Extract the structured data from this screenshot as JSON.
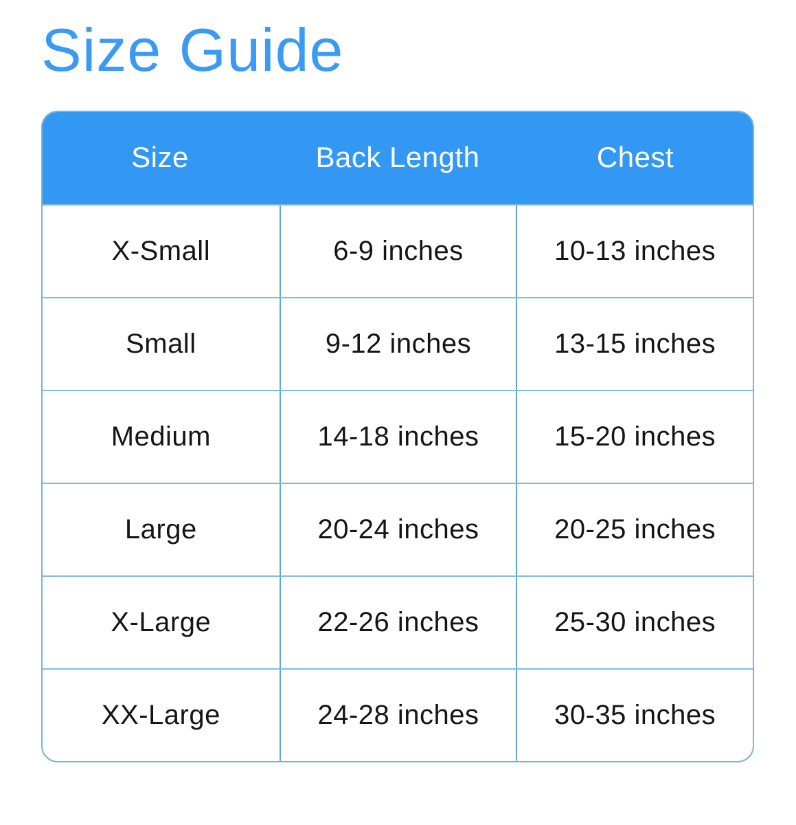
{
  "page": {
    "title": "Size Guide"
  },
  "theme": {
    "accent": "#3b9af4",
    "header_bg": "#3398f3",
    "border_outer": "#79b4da",
    "border_horizontal": "#7fbce4",
    "border_vertical": "#58a9da",
    "text": "#151515",
    "header_text": "#ffffff"
  },
  "table": {
    "columns": [
      "Size",
      "Back Length",
      "Chest"
    ],
    "rows": [
      {
        "size": "X-Small",
        "back_length": "6-9 inches",
        "chest": "10-13 inches"
      },
      {
        "size": "Small",
        "back_length": "9-12 inches",
        "chest": "13-15 inches"
      },
      {
        "size": "Medium",
        "back_length": "14-18 inches",
        "chest": "15-20 inches"
      },
      {
        "size": "Large",
        "back_length": "20-24 inches",
        "chest": "20-25 inches"
      },
      {
        "size": "X-Large",
        "back_length": "22-26 inches",
        "chest": "25-30 inches"
      },
      {
        "size": "XX-Large",
        "back_length": "24-28 inches",
        "chest": "30-35 inches"
      }
    ]
  },
  "chart_data": {
    "type": "table",
    "title": "Size Guide",
    "columns": [
      "Size",
      "Back Length",
      "Chest"
    ],
    "rows": [
      [
        "X-Small",
        "6-9 inches",
        "10-13 inches"
      ],
      [
        "Small",
        "9-12 inches",
        "13-15 inches"
      ],
      [
        "Medium",
        "14-18 inches",
        "15-20 inches"
      ],
      [
        "Large",
        "20-24 inches",
        "20-25 inches"
      ],
      [
        "X-Large",
        "22-26 inches",
        "25-30 inches"
      ],
      [
        "XX-Large",
        "24-28 inches",
        "30-35 inches"
      ]
    ]
  }
}
